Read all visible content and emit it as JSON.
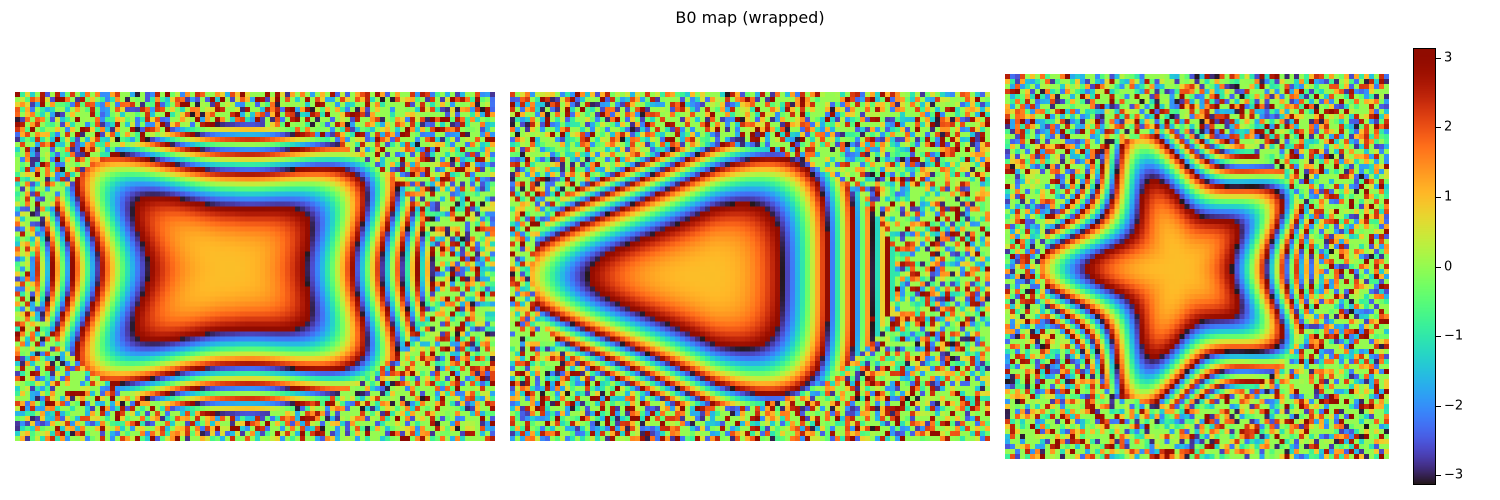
{
  "title": "B0 map (wrapped)",
  "chart_data": {
    "type": "heatmap",
    "title": "B0 map (wrapped)",
    "colormap": "turbo",
    "panels": 3,
    "value_range": [
      -3.14159,
      3.14159
    ],
    "colorbar": {
      "ticks": [
        3,
        2,
        1,
        0,
        -1,
        -2,
        -3
      ],
      "tick_labels": [
        "3",
        "2",
        "1",
        "0",
        "−1",
        "−2",
        "−3"
      ]
    }
  }
}
